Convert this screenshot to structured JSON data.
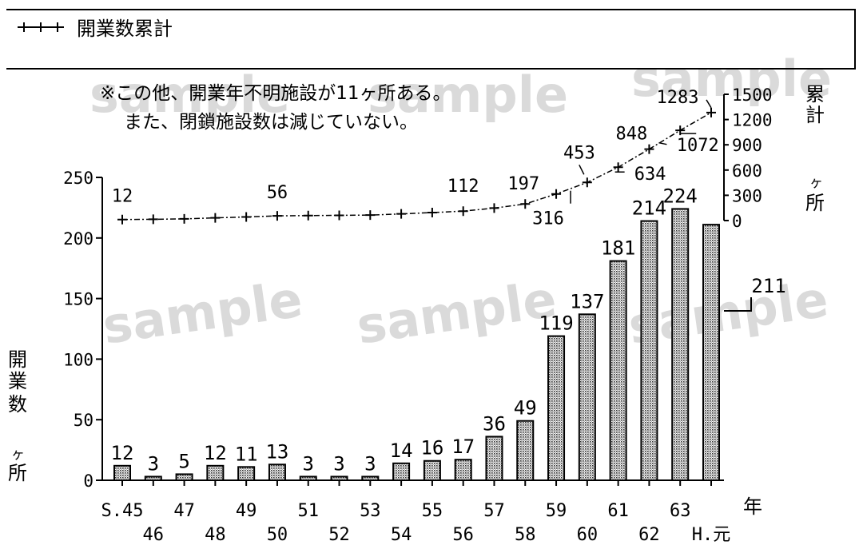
{
  "legend": {
    "label": "開業数累計"
  },
  "notes": [
    "※この他、開業年不明施設が11ヶ所ある。",
    "また、閉鎖施設数は減じていない。"
  ],
  "watermark": "sample",
  "chart_data": {
    "type": "bar",
    "categories": [
      "S.45",
      "46",
      "47",
      "48",
      "49",
      "50",
      "51",
      "52",
      "53",
      "54",
      "55",
      "56",
      "57",
      "58",
      "59",
      "60",
      "61",
      "62",
      "63",
      "H.元"
    ],
    "series": [
      {
        "values": [
          12,
          3,
          5,
          12,
          11,
          13,
          3,
          3,
          3,
          14,
          16,
          17,
          36,
          49,
          119,
          137,
          181,
          214,
          224,
          211
        ],
        "axis": "left",
        "render": "bar"
      },
      {
        "name": "開業数累計",
        "values": [
          12,
          15,
          20,
          32,
          43,
          56,
          59,
          62,
          65,
          79,
          95,
          112,
          148,
          197,
          316,
          453,
          634,
          848,
          1072,
          1283
        ],
        "axis": "right",
        "render": "line"
      }
    ],
    "cumulative_labels": {
      "S.45": "12",
      "50": "56",
      "56": "112",
      "58": "197",
      "59": "316",
      "60": "453",
      "61": "634",
      "62": "848",
      "63": "1072",
      "H.元": "1283"
    },
    "ylabel_left": "開業数 ヶ所",
    "ylabel_right": "累計 ヶ所",
    "xlabel": "年",
    "ylim_left": [
      0,
      250
    ],
    "yticks_left": [
      "0",
      "50",
      "100",
      "150",
      "200",
      "250"
    ],
    "ylim_right": [
      0,
      1500
    ],
    "yticks_right": [
      "0",
      "300",
      "600",
      "900",
      "1200",
      "1500"
    ],
    "grid": false,
    "legend_position": "top-left",
    "bar_fill": "#bdbdbd"
  }
}
